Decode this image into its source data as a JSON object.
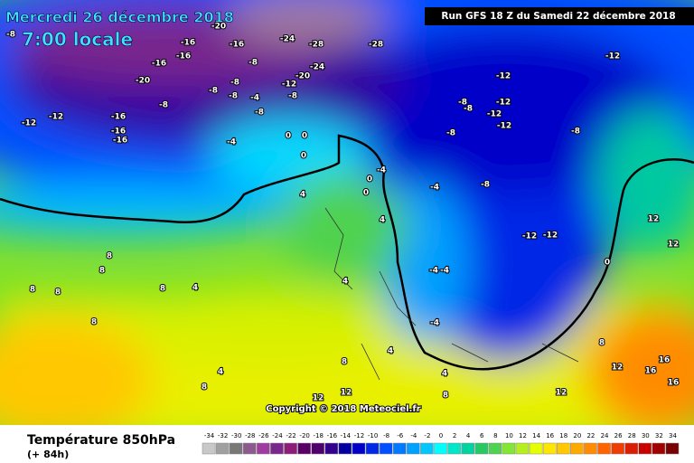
{
  "header": {
    "date": "Mercredi 26 décembre 2018",
    "time": "7:00 locale",
    "run": "Run GFS 18 Z du Samedi 22 décembre 2018",
    "copyright": "Copyright © 2018 Meteociel.fr"
  },
  "footer": {
    "title": "Température 850hPa",
    "lead": "(+ 84h)"
  },
  "legend": {
    "values": [
      -34,
      -32,
      -30,
      -28,
      -26,
      -24,
      -22,
      -20,
      -18,
      -16,
      -14,
      -12,
      -10,
      -8,
      -6,
      -4,
      -2,
      0,
      2,
      4,
      6,
      8,
      10,
      12,
      14,
      16,
      18,
      20,
      22,
      24,
      26,
      28,
      30,
      32,
      34
    ],
    "colors": [
      "#c8c8c8",
      "#a0a0a0",
      "#787878",
      "#8c5a8c",
      "#a03ca0",
      "#78288c",
      "#8c1e78",
      "#5a0064",
      "#50006e",
      "#32008c",
      "#0000a0",
      "#0000c8",
      "#0028e6",
      "#0050ff",
      "#0078ff",
      "#00a0ff",
      "#00c8ff",
      "#00ffff",
      "#00e6c8",
      "#00d2a0",
      "#28c864",
      "#50d250",
      "#82e632",
      "#b4f01e",
      "#e6ff00",
      "#ffe600",
      "#ffc800",
      "#ffaa00",
      "#ff8c00",
      "#ff6400",
      "#f03c00",
      "#dc1e00",
      "#c80000",
      "#a00000",
      "#780000"
    ]
  },
  "map_labels": [
    "-8",
    "-16",
    "-20",
    "-24",
    "-28",
    "-28",
    "-16",
    "-16",
    "-16",
    "-20",
    "-12",
    "-12",
    "-16",
    "-16",
    "-16",
    "-8",
    "-8",
    "-8",
    "-8",
    "-4",
    "-8",
    "-8",
    "-12",
    "-8",
    "-20",
    "-24",
    "-4",
    "0",
    "0",
    "0",
    "-12",
    "-12",
    "-12",
    "-8",
    "-8",
    "-12",
    "-12",
    "-8",
    "-8",
    "-8",
    "-4",
    "-4",
    "0",
    "0",
    "4",
    "-12",
    "-12",
    "0",
    "-4",
    "-4",
    "-4",
    "4",
    "8",
    "4",
    "4",
    "8",
    "12",
    "16",
    "16",
    "16",
    "12",
    "12",
    "8",
    "8",
    "8",
    "8",
    "8",
    "4",
    "8",
    "4",
    "8",
    "4",
    "12",
    "12",
    "8",
    "12"
  ]
}
